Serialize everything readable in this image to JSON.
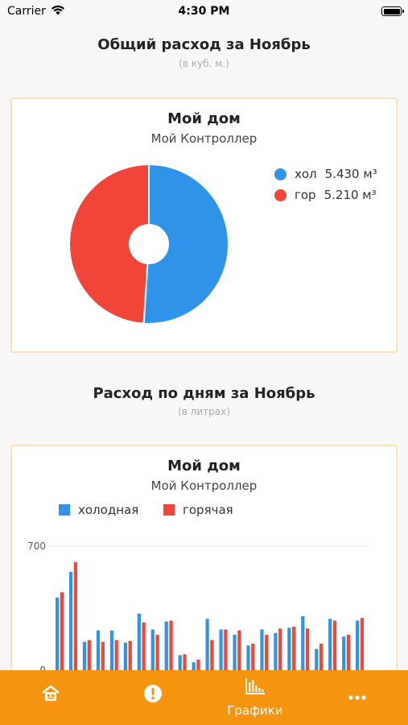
{
  "status_bar": {
    "carrier": "Carrier",
    "time": "4:30 PM",
    "battery_level": 1.0
  },
  "summary": {
    "title": "Общий расход за Ноябрь",
    "unit_note": "(в куб. м.)",
    "card": {
      "title": "Мой дом",
      "subtitle": "Мой Контроллер",
      "legend": [
        {
          "label": "хол",
          "value": "5.430 м³",
          "color": "#2f93e9"
        },
        {
          "label": "гор",
          "value": "5.210 м³",
          "color": "#f2453a"
        }
      ]
    }
  },
  "daily": {
    "title": "Расход по дням за Ноябрь",
    "unit_note": "(в литрах)",
    "card": {
      "title": "Мой дом",
      "subtitle": "Мой Контроллер",
      "legend": [
        {
          "label": "холодная",
          "color": "#2f93e9"
        },
        {
          "label": "горячая",
          "color": "#f2453a"
        }
      ]
    }
  },
  "chart_data": [
    {
      "type": "pie",
      "labels": [
        "хол",
        "гор"
      ],
      "values": [
        5.43,
        5.21
      ],
      "colors": [
        "#2f93e9",
        "#f2453a"
      ],
      "donut": true
    },
    {
      "type": "bar",
      "ylim": [
        0,
        700
      ],
      "yticks": [
        "0",
        "700"
      ],
      "grid": true,
      "series": [
        {
          "name": "холодная",
          "color": "#2f93e9",
          "values": [
            410,
            555,
            160,
            225,
            225,
            155,
            320,
            230,
            275,
            85,
            45,
            290,
            230,
            200,
            140,
            230,
            210,
            240,
            305,
            120,
            290,
            190,
            280
          ]
        },
        {
          "name": "горячая",
          "color": "#f2453a",
          "values": [
            440,
            610,
            170,
            160,
            170,
            165,
            270,
            200,
            280,
            90,
            60,
            170,
            230,
            225,
            150,
            200,
            235,
            245,
            235,
            150,
            280,
            200,
            295
          ]
        }
      ]
    }
  ],
  "tab_bar": {
    "tabs": [
      {
        "label": ""
      },
      {
        "label": ""
      },
      {
        "label": "Графики"
      },
      {
        "label": ""
      }
    ]
  }
}
